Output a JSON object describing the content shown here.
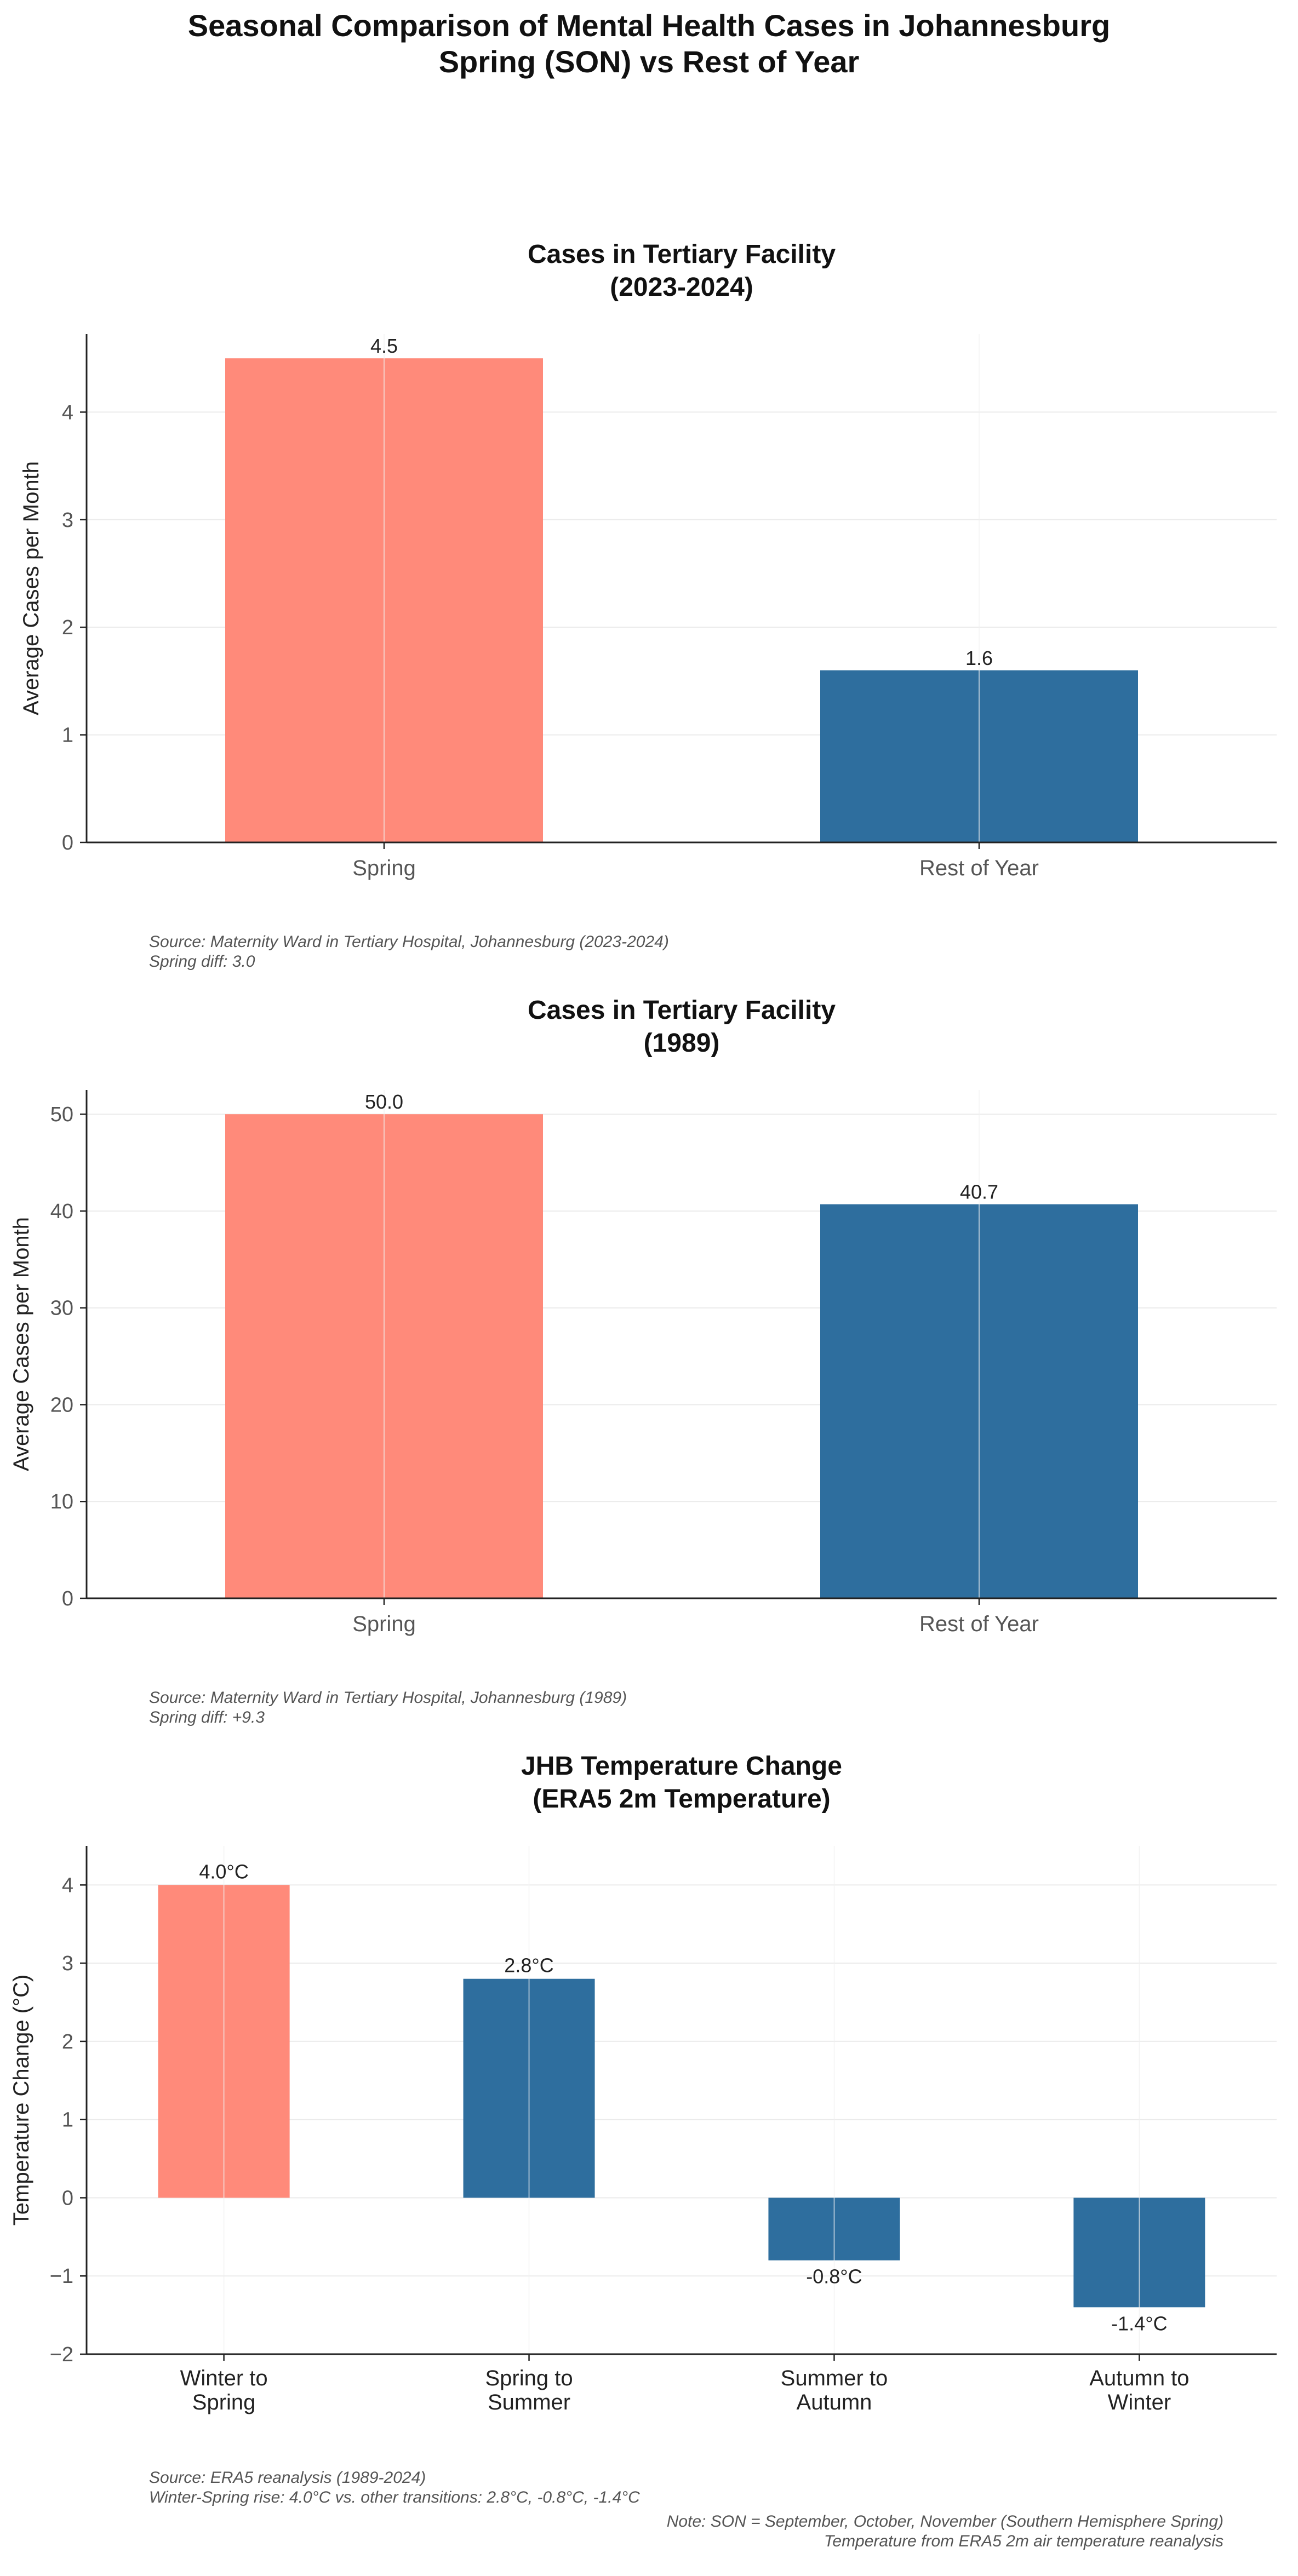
{
  "title": [
    "Seasonal Comparison of Mental Health Cases in Johannesburg",
    "Spring (SON) vs Rest of Year"
  ],
  "colors": {
    "highlight": "#FF8A7A",
    "base": "#2E6E9E",
    "axis": "#222222",
    "grid": "#EBEBEB",
    "tick_text": "#555555",
    "note_text": "#555555"
  },
  "chart_data": [
    {
      "type": "bar",
      "title": [
        "Cases in Tertiary Facility",
        "(2023-2024)"
      ],
      "categories": [
        "Spring",
        "Rest of Year"
      ],
      "values": [
        4.5,
        1.6
      ],
      "value_labels": [
        "4.5",
        "1.6"
      ],
      "highlight": [
        true,
        false
      ],
      "ylabel": "Average Cases per Month",
      "xlabel": "",
      "ylim": [
        0,
        4.725
      ],
      "yticks": [
        0,
        1,
        2,
        3,
        4
      ],
      "ytick_labels": [
        "0",
        "1",
        "2",
        "3",
        "4"
      ],
      "grid": true,
      "note": [
        "Source: Maternity Ward in Tertiary Hospital, Johannesburg (2023-2024)",
        "Spring diff: 3.0"
      ]
    },
    {
      "type": "bar",
      "title": [
        "Cases in Tertiary Facility",
        "(1989)"
      ],
      "categories": [
        "Spring",
        "Rest of Year"
      ],
      "values": [
        50.0,
        40.7
      ],
      "value_labels": [
        "50.0",
        "40.7"
      ],
      "highlight": [
        true,
        false
      ],
      "ylabel": "Average Cases per Month",
      "xlabel": "",
      "ylim": [
        0,
        52.5
      ],
      "yticks": [
        0,
        10,
        20,
        30,
        40,
        50
      ],
      "ytick_labels": [
        "0",
        "10",
        "20",
        "30",
        "40",
        "50"
      ],
      "grid": true,
      "note": [
        "Source: Maternity Ward in Tertiary Hospital, Johannesburg (1989)",
        "Spring diff: +9.3"
      ]
    },
    {
      "type": "bar",
      "title": [
        "JHB Temperature Change",
        "(ERA5 2m Temperature)"
      ],
      "categories": [
        [
          "Winter to",
          "Spring"
        ],
        [
          "Spring to",
          "Summer"
        ],
        [
          "Summer to",
          "Autumn"
        ],
        [
          "Autumn to",
          "Winter"
        ]
      ],
      "values": [
        4.0,
        2.8,
        -0.8,
        -1.4
      ],
      "value_labels": [
        "4.0°C",
        "2.8°C",
        "-0.8°C",
        "-1.4°C"
      ],
      "highlight": [
        true,
        false,
        false,
        false
      ],
      "ylabel": "Temperature Change (°C)",
      "xlabel": "",
      "ylim": [
        -2,
        4.5
      ],
      "yticks": [
        -2,
        -1,
        0,
        1,
        2,
        3,
        4
      ],
      "ytick_labels": [
        "−2",
        "−1",
        "0",
        "1",
        "2",
        "3",
        "4"
      ],
      "grid": true,
      "note": [
        "Source: ERA5 reanalysis (1989-2024)",
        "Winter-Spring rise: 4.0°C vs. other transitions: 2.8°C, -0.8°C, -1.4°C"
      ]
    }
  ],
  "footnote": [
    "Note: SON = September, October, November (Southern Hemisphere Spring)",
    "Temperature from ERA5 2m air temperature reanalysis"
  ]
}
